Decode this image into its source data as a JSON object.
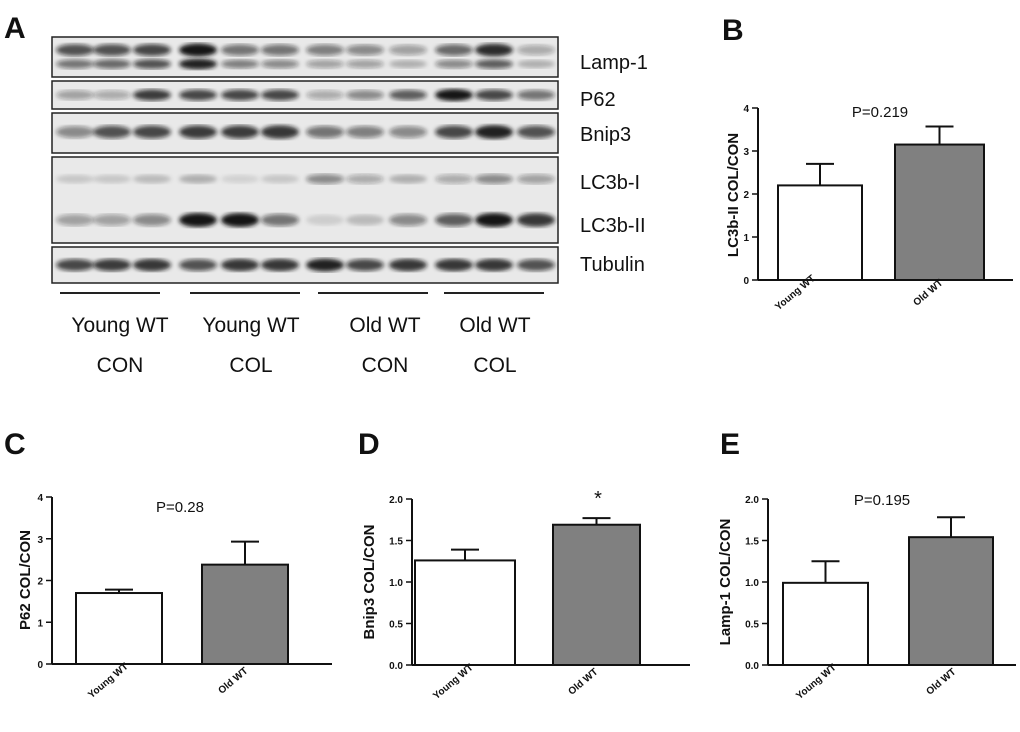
{
  "panels": {
    "a": "A",
    "b": "B",
    "c": "C",
    "d": "D",
    "e": "E"
  },
  "blot": {
    "labels": [
      "Lamp-1",
      "P62",
      "Bnip3",
      "LC3b-I",
      "LC3b-II",
      "Tubulin"
    ],
    "groups": [
      {
        "line1": "Young WT",
        "line2": "CON"
      },
      {
        "line1": "Young WT",
        "line2": "COL"
      },
      {
        "line1": "Old WT",
        "line2": "CON"
      },
      {
        "line1": "Old WT",
        "line2": "COL"
      }
    ]
  },
  "colors": {
    "young_bar": "#ffffff",
    "old_bar": "#808080",
    "axis": "#111111"
  },
  "chart_data": [
    {
      "id": "B",
      "type": "bar",
      "categories": [
        "Young WT",
        "Old WT"
      ],
      "values": [
        2.2,
        3.15
      ],
      "errors": [
        0.5,
        0.42
      ],
      "ylabel": "LC3b-II COL/CON",
      "yticks": [
        "0",
        "1",
        "2",
        "3",
        "4"
      ],
      "ylim": [
        0,
        4
      ],
      "annotation": "P=0.219"
    },
    {
      "id": "C",
      "type": "bar",
      "categories": [
        "Young WT",
        "Old WT"
      ],
      "values": [
        1.7,
        2.38
      ],
      "errors": [
        0.08,
        0.55
      ],
      "ylabel": "P62 COL/CON",
      "yticks": [
        "0",
        "1",
        "2",
        "3",
        "4"
      ],
      "ylim": [
        0,
        4
      ],
      "annotation": "P=0.28"
    },
    {
      "id": "D",
      "type": "bar",
      "categories": [
        "Young WT",
        "Old WT"
      ],
      "values": [
        1.26,
        1.69
      ],
      "errors": [
        0.13,
        0.08
      ],
      "ylabel": "Bnip3 COL/CON",
      "yticks": [
        "0.0",
        "0.5",
        "1.0",
        "1.5",
        "2.0"
      ],
      "ylim": [
        0,
        2
      ],
      "annotation": "*"
    },
    {
      "id": "E",
      "type": "bar",
      "categories": [
        "Young WT",
        "Old WT"
      ],
      "values": [
        0.99,
        1.54
      ],
      "errors": [
        0.26,
        0.24
      ],
      "ylabel": "Lamp-1 COL/CON",
      "yticks": [
        "0.0",
        "0.5",
        "1.0",
        "1.5",
        "2.0"
      ],
      "ylim": [
        0,
        2
      ],
      "annotation": "P=0.195"
    }
  ]
}
